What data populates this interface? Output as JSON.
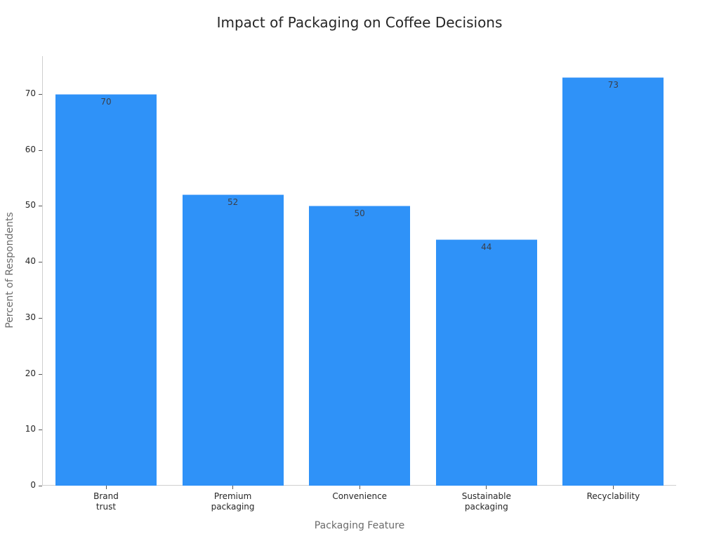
{
  "chart_data": {
    "type": "bar",
    "title": "Impact of Packaging on Coffee Decisions",
    "xlabel": "Packaging Feature",
    "ylabel": "Percent of Respondents",
    "categories": [
      "Brand\ntrust",
      "Premium\npackaging",
      "Convenience",
      "Sustainable\npackaging",
      "Recyclability"
    ],
    "values": [
      70,
      52,
      50,
      44,
      73
    ],
    "data_labels": [
      "70",
      "52",
      "50",
      "44",
      "73"
    ],
    "yticks": [
      0,
      10,
      20,
      30,
      40,
      50,
      60,
      70
    ],
    "ylim": [
      0,
      76.8
    ],
    "grid": false,
    "legend": null,
    "bar_color": "#2f92f8"
  }
}
